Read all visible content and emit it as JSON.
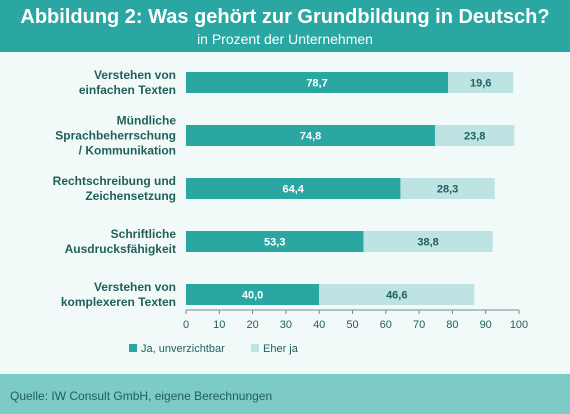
{
  "header": {
    "title": "Abbildung 2: Was gehört zur Grundbildung in Deutsch?",
    "subtitle": "in Prozent der Unternehmen"
  },
  "footer": {
    "source": "Quelle: IW Consult GmbH, eigene Berechnungen"
  },
  "colors": {
    "series1": "#2aa7a2",
    "series2": "#bde4e2",
    "header_bg": "#2aa7a2",
    "footer_bg": "#7ccbc7"
  },
  "chart_data": {
    "type": "bar",
    "orientation": "horizontal",
    "stacked": true,
    "categories": [
      [
        "Verstehen von",
        "einfachen Texten"
      ],
      [
        "Mündliche",
        "Sprachbeherrschung",
        "/ Kommunikation"
      ],
      [
        "Rechtschreibung und",
        "Zeichensetzung"
      ],
      [
        "Schriftliche",
        "Ausdrucksfähigkeit"
      ],
      [
        "Verstehen von",
        "komplexeren Texten"
      ]
    ],
    "series": [
      {
        "name": "Ja, unverzichtbar",
        "values": [
          78.7,
          74.8,
          64.4,
          53.3,
          40.0
        ],
        "labels": [
          "78,7",
          "74,8",
          "64,4",
          "53,3",
          "40,0"
        ]
      },
      {
        "name": "Eher ja",
        "values": [
          19.6,
          23.8,
          28.3,
          38.8,
          46.6
        ],
        "labels": [
          "19,6",
          "23,8",
          "28,3",
          "38,8",
          "46,6"
        ]
      }
    ],
    "xlim": [
      0,
      100
    ],
    "xticks": [
      0,
      10,
      20,
      30,
      40,
      50,
      60,
      70,
      80,
      90,
      100
    ],
    "legend_position": "bottom-left",
    "grid": false
  }
}
